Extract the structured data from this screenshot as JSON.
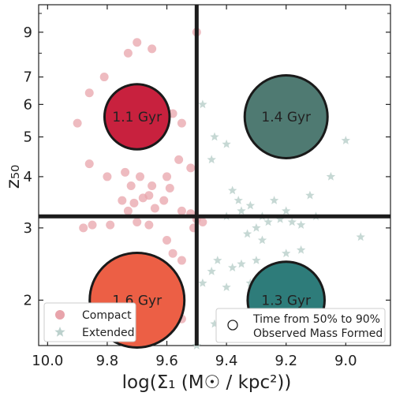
{
  "chart_data": {
    "type": "scatter",
    "xlabel": "log(Σ₁ (M☉ / kpc²))",
    "ylabel": "z₅₀",
    "xlim": [
      10.03,
      8.85
    ],
    "ylim": [
      1.55,
      10.5
    ],
    "y_scale": "log",
    "x_ticks": [
      "10.0",
      "9.8",
      "9.6",
      "9.4",
      "9.2",
      "9.0"
    ],
    "x_tick_values": [
      10.0,
      9.8,
      9.6,
      9.4,
      9.2,
      9.0
    ],
    "y_ticks": [
      "2",
      "3",
      "4",
      "5",
      "6",
      "7",
      "9"
    ],
    "y_tick_values": [
      2,
      3,
      4,
      5,
      6,
      7,
      9
    ],
    "dividers": {
      "x": 9.5,
      "y": 3.2
    },
    "grid": false,
    "colors": {
      "compact": "#e8a4ab",
      "extended": "#bcd1cd",
      "divider": "#1c1c1c",
      "q_top_left": "#c8213e",
      "q_top_right": "#4f7a72",
      "q_bottom_left": "#ec5f45",
      "q_bottom_right": "#2e7c7a"
    },
    "quadrant_bubbles": [
      {
        "x": 9.7,
        "y": 5.6,
        "size": 1.1,
        "label": "1.1 Gyr",
        "color_key": "q_top_left"
      },
      {
        "x": 9.2,
        "y": 5.6,
        "size": 1.4,
        "label": "1.4 Gyr",
        "color_key": "q_top_right"
      },
      {
        "x": 9.7,
        "y": 2.0,
        "size": 1.6,
        "label": "1.6 Gyr",
        "color_key": "q_bottom_left"
      },
      {
        "x": 9.2,
        "y": 2.0,
        "size": 1.3,
        "label": "1.3 Gyr",
        "color_key": "q_bottom_right"
      }
    ],
    "series": [
      {
        "name": "Compact",
        "marker": "circle",
        "color_key": "compact",
        "points": [
          [
            9.9,
            5.4
          ],
          [
            9.86,
            6.4
          ],
          [
            9.81,
            7.0
          ],
          [
            9.73,
            8.0
          ],
          [
            9.7,
            8.5
          ],
          [
            9.65,
            8.2
          ],
          [
            9.76,
            5.5
          ],
          [
            9.72,
            5.3
          ],
          [
            9.69,
            5.0
          ],
          [
            9.67,
            6.0
          ],
          [
            9.63,
            5.8
          ],
          [
            9.58,
            5.7
          ],
          [
            9.55,
            5.4
          ],
          [
            9.86,
            4.3
          ],
          [
            9.8,
            4.0
          ],
          [
            9.74,
            4.1
          ],
          [
            9.69,
            4.0
          ],
          [
            9.65,
            3.8
          ],
          [
            9.6,
            4.0
          ],
          [
            9.56,
            4.4
          ],
          [
            9.52,
            4.2
          ],
          [
            9.72,
            3.8
          ],
          [
            9.66,
            3.6
          ],
          [
            9.61,
            3.5
          ],
          [
            9.59,
            3.75
          ],
          [
            9.71,
            3.45
          ],
          [
            9.68,
            3.55
          ],
          [
            9.73,
            3.3
          ],
          [
            9.75,
            3.5
          ],
          [
            9.64,
            3.35
          ],
          [
            9.55,
            3.3
          ],
          [
            9.52,
            3.25
          ],
          [
            9.5,
            3.15
          ],
          [
            9.48,
            3.1
          ],
          [
            9.51,
            3.0
          ],
          [
            9.88,
            3.0
          ],
          [
            9.85,
            3.05
          ],
          [
            9.79,
            3.05
          ],
          [
            9.7,
            3.1
          ],
          [
            9.66,
            3.05
          ],
          [
            9.6,
            2.8
          ],
          [
            9.58,
            2.6
          ],
          [
            9.55,
            2.5
          ],
          [
            9.68,
            2.3
          ],
          [
            9.6,
            2.1
          ],
          [
            9.55,
            1.8
          ],
          [
            9.5,
            9.0
          ]
        ]
      },
      {
        "name": "Extended",
        "marker": "star",
        "color_key": "extended",
        "points": [
          [
            9.48,
            6.0
          ],
          [
            9.44,
            5.0
          ],
          [
            9.4,
            4.8
          ],
          [
            9.45,
            4.4
          ],
          [
            9.38,
            3.7
          ],
          [
            9.36,
            3.5
          ],
          [
            9.32,
            3.4
          ],
          [
            9.28,
            3.2
          ],
          [
            9.24,
            3.5
          ],
          [
            9.2,
            3.3
          ],
          [
            9.18,
            3.1
          ],
          [
            9.15,
            3.05
          ],
          [
            9.3,
            3.0
          ],
          [
            9.26,
            3.1
          ],
          [
            9.22,
            3.15
          ],
          [
            9.4,
            3.2
          ],
          [
            9.35,
            3.3
          ],
          [
            9.33,
            2.9
          ],
          [
            9.28,
            2.8
          ],
          [
            9.43,
            2.5
          ],
          [
            9.38,
            2.4
          ],
          [
            9.45,
            2.35
          ],
          [
            9.35,
            2.45
          ],
          [
            9.3,
            2.5
          ],
          [
            9.2,
            2.6
          ],
          [
            9.15,
            2.65
          ],
          [
            9.48,
            2.2
          ],
          [
            9.4,
            2.15
          ],
          [
            9.32,
            2.2
          ],
          [
            9.25,
            2.25
          ],
          [
            9.44,
            1.75
          ],
          [
            9.5,
            1.55
          ],
          [
            9.1,
            3.2
          ],
          [
            9.05,
            4.0
          ],
          [
            9.0,
            4.9
          ],
          [
            8.95,
            2.85
          ],
          [
            9.12,
            3.6
          ]
        ]
      }
    ],
    "legend": {
      "placement_left": "bottom-left",
      "placement_right": "bottom-right",
      "items": [
        {
          "label": "Compact",
          "marker": "circle",
          "color_key": "compact"
        },
        {
          "label": "Extended",
          "marker": "star",
          "color_key": "extended"
        }
      ],
      "size_item": {
        "label_line1": "Time from 50% to 90%",
        "label_line2": "Observed Mass Formed",
        "marker": "open-circle"
      }
    }
  }
}
